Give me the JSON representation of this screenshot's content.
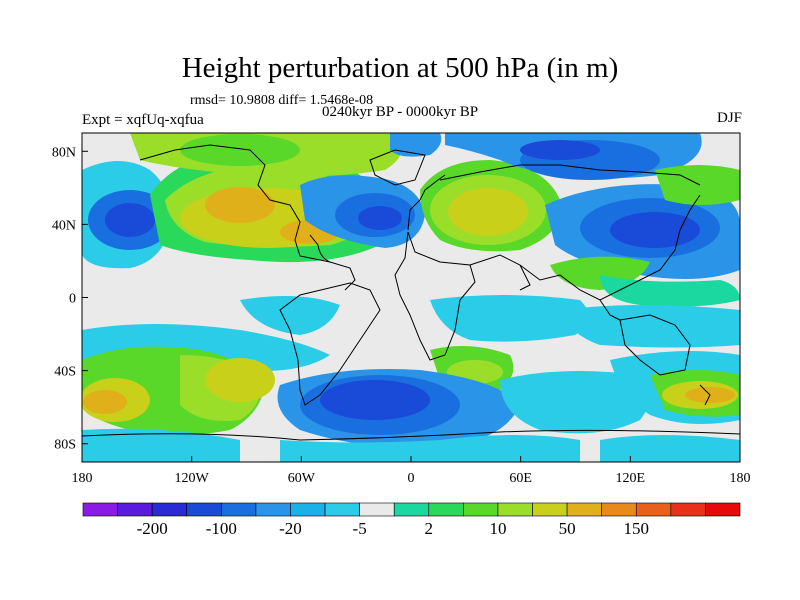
{
  "header": {
    "title": "Height perturbation at 500 hPa (in m)",
    "stats": "rmsd= 10.9808 diff= 1.5468e-08",
    "expt": "Expt = xqfUq-xqfua",
    "period": "0240kyr BP - 0000kyr BP",
    "season": "DJF"
  },
  "map": {
    "lat_labels": [
      "80N",
      "40N",
      "0",
      "40S",
      "80S"
    ],
    "lon_labels": [
      "180",
      "120W",
      "60W",
      "0",
      "60E",
      "120E",
      "180"
    ],
    "lat_range": [
      -90,
      90
    ],
    "lon_range": [
      -180,
      180
    ]
  },
  "colorbar": {
    "labels": [
      "-200",
      "-100",
      "-20",
      "-5",
      "2",
      "10",
      "50",
      "150"
    ],
    "colors": [
      "#8a1ae6",
      "#5a1adf",
      "#2a2ad6",
      "#1a4ad8",
      "#1a6fe0",
      "#2a95e8",
      "#1ab0e8",
      "#2acce8",
      "#eaeaea",
      "#1ad8a0",
      "#2ad85a",
      "#5ad82a",
      "#9ade2a",
      "#c8d01a",
      "#e0b01a",
      "#e88a1a",
      "#e8601a",
      "#e8301a",
      "#e80a0a"
    ]
  }
}
